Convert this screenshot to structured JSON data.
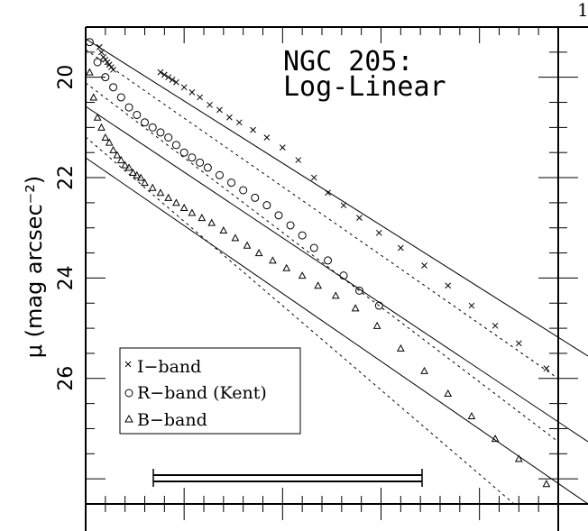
{
  "chart_data": {
    "type": "scatter",
    "title": "NGC 205:",
    "subtitle": "Log-Linear",
    "ylabel": "μ (mag arcsec⁻²)",
    "y_reversed": true,
    "ylim": [
      19.0,
      28.5
    ],
    "y_ticks": [
      "20",
      "22",
      "24",
      "26"
    ],
    "y_tick_values": [
      20,
      22,
      24,
      26
    ],
    "corner_label": "1",
    "series": [
      {
        "name": "I−band",
        "marker": "x",
        "points": [
          [
            0.7,
            19.4
          ],
          [
            0.8,
            19.5
          ],
          [
            0.9,
            19.6
          ],
          [
            1.0,
            19.65
          ],
          [
            1.1,
            19.7
          ],
          [
            1.2,
            19.75
          ],
          [
            1.3,
            19.8
          ],
          [
            1.4,
            19.85
          ],
          [
            3.8,
            19.9
          ],
          [
            4.0,
            19.95
          ],
          [
            4.2,
            20.0
          ],
          [
            4.4,
            20.05
          ],
          [
            4.6,
            20.1
          ],
          [
            5.0,
            20.2
          ],
          [
            5.4,
            20.3
          ],
          [
            5.8,
            20.4
          ],
          [
            6.3,
            20.55
          ],
          [
            6.8,
            20.65
          ],
          [
            7.3,
            20.8
          ],
          [
            7.8,
            20.9
          ],
          [
            8.5,
            21.05
          ],
          [
            9.2,
            21.2
          ],
          [
            10.0,
            21.4
          ],
          [
            10.8,
            21.65
          ],
          [
            11.6,
            22.0
          ],
          [
            12.3,
            22.3
          ],
          [
            13.1,
            22.55
          ],
          [
            13.9,
            22.8
          ],
          [
            14.9,
            23.1
          ],
          [
            16.0,
            23.4
          ],
          [
            17.2,
            23.75
          ],
          [
            18.4,
            24.15
          ],
          [
            19.6,
            24.55
          ],
          [
            20.8,
            24.95
          ],
          [
            22.0,
            25.3
          ],
          [
            23.4,
            25.8
          ]
        ]
      },
      {
        "name": "R−band (Kent)",
        "marker": "o",
        "points": [
          [
            0.2,
            19.3
          ],
          [
            0.6,
            19.7
          ],
          [
            1.0,
            20.0
          ],
          [
            1.4,
            20.2
          ],
          [
            1.8,
            20.4
          ],
          [
            2.2,
            20.6
          ],
          [
            2.6,
            20.75
          ],
          [
            3.0,
            20.9
          ],
          [
            3.4,
            21.0
          ],
          [
            3.8,
            21.1
          ],
          [
            4.2,
            21.2
          ],
          [
            4.6,
            21.35
          ],
          [
            5.0,
            21.5
          ],
          [
            5.4,
            21.6
          ],
          [
            5.8,
            21.7
          ],
          [
            6.2,
            21.8
          ],
          [
            6.8,
            21.95
          ],
          [
            7.4,
            22.1
          ],
          [
            8.0,
            22.25
          ],
          [
            8.6,
            22.4
          ],
          [
            9.2,
            22.55
          ],
          [
            9.8,
            22.75
          ],
          [
            10.4,
            22.95
          ],
          [
            11.0,
            23.15
          ],
          [
            11.6,
            23.4
          ],
          [
            12.3,
            23.65
          ],
          [
            13.1,
            23.95
          ],
          [
            13.9,
            24.25
          ],
          [
            14.9,
            24.55
          ]
        ]
      },
      {
        "name": "B−band",
        "marker": "triangle",
        "points": [
          [
            0.2,
            19.9
          ],
          [
            0.4,
            20.4
          ],
          [
            0.6,
            20.8
          ],
          [
            0.8,
            21.0
          ],
          [
            1.0,
            21.2
          ],
          [
            1.2,
            21.3
          ],
          [
            1.4,
            21.45
          ],
          [
            1.6,
            21.55
          ],
          [
            1.8,
            21.65
          ],
          [
            2.0,
            21.75
          ],
          [
            2.2,
            21.8
          ],
          [
            2.4,
            21.9
          ],
          [
            2.6,
            21.95
          ],
          [
            2.8,
            22.0
          ],
          [
            3.0,
            22.1
          ],
          [
            3.4,
            22.2
          ],
          [
            3.8,
            22.3
          ],
          [
            4.2,
            22.4
          ],
          [
            4.6,
            22.5
          ],
          [
            5.0,
            22.6
          ],
          [
            5.4,
            22.7
          ],
          [
            5.9,
            22.8
          ],
          [
            6.4,
            22.9
          ],
          [
            7.0,
            23.05
          ],
          [
            7.6,
            23.2
          ],
          [
            8.2,
            23.35
          ],
          [
            8.8,
            23.5
          ],
          [
            9.5,
            23.65
          ],
          [
            10.2,
            23.8
          ],
          [
            11.0,
            23.95
          ],
          [
            11.8,
            24.15
          ],
          [
            12.7,
            24.35
          ],
          [
            13.7,
            24.6
          ],
          [
            14.8,
            24.95
          ],
          [
            16.0,
            25.4
          ],
          [
            17.2,
            25.85
          ],
          [
            18.4,
            26.3
          ],
          [
            19.6,
            26.75
          ],
          [
            20.8,
            27.2
          ],
          [
            22.0,
            27.6
          ],
          [
            23.4,
            28.1
          ]
        ]
      }
    ],
    "legend": {
      "entries": [
        "I−band",
        "R−band (Kent)",
        "B−band"
      ],
      "placement": "bottom-left"
    }
  }
}
